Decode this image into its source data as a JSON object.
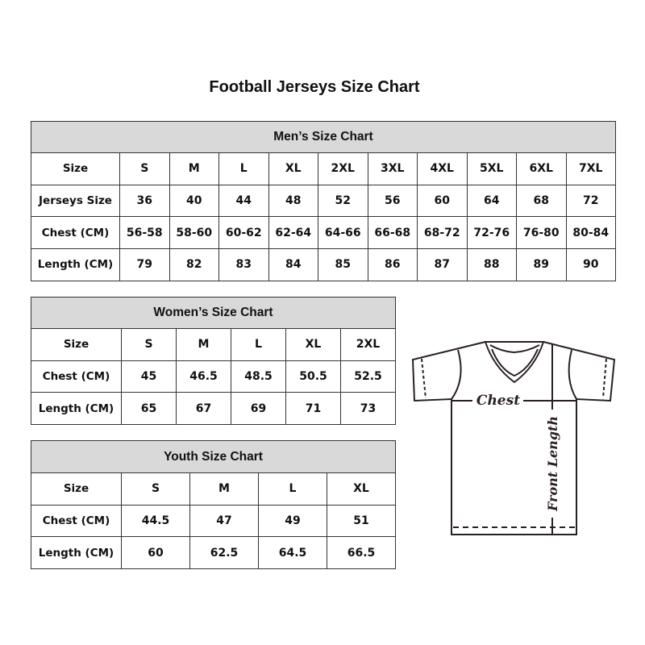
{
  "title": "Football Jerseys Size Chart",
  "men": {
    "heading": "Men’s Size Chart",
    "rows": [
      [
        "Size",
        "S",
        "M",
        "L",
        "XL",
        "2XL",
        "3XL",
        "4XL",
        "5XL",
        "6XL",
        "7XL"
      ],
      [
        "Jerseys Size",
        "36",
        "40",
        "44",
        "48",
        "52",
        "56",
        "60",
        "64",
        "68",
        "72"
      ],
      [
        "Chest (CM)",
        "56-58",
        "58-60",
        "60-62",
        "62-64",
        "64-66",
        "66-68",
        "68-72",
        "72-76",
        "76-80",
        "80-84"
      ],
      [
        "Length (CM)",
        "79",
        "82",
        "83",
        "84",
        "85",
        "86",
        "87",
        "88",
        "89",
        "90"
      ]
    ]
  },
  "women": {
    "heading": "Women’s Size Chart",
    "rows": [
      [
        "Size",
        "S",
        "M",
        "L",
        "XL",
        "2XL"
      ],
      [
        "Chest (CM)",
        "45",
        "46.5",
        "48.5",
        "50.5",
        "52.5"
      ],
      [
        "Length (CM)",
        "65",
        "67",
        "69",
        "71",
        "73"
      ]
    ]
  },
  "youth": {
    "heading": "Youth Size Chart",
    "rows": [
      [
        "Size",
        "S",
        "M",
        "L",
        "XL"
      ],
      [
        "Chest (CM)",
        "44.5",
        "47",
        "49",
        "51"
      ],
      [
        "Length (CM)",
        "60",
        "62.5",
        "64.5",
        "66.5"
      ]
    ]
  },
  "diagram": {
    "chest_label": "Chest",
    "length_label": "Front Length"
  },
  "colors": {
    "header_bg": "#d9d9d9",
    "border": "#333333"
  }
}
